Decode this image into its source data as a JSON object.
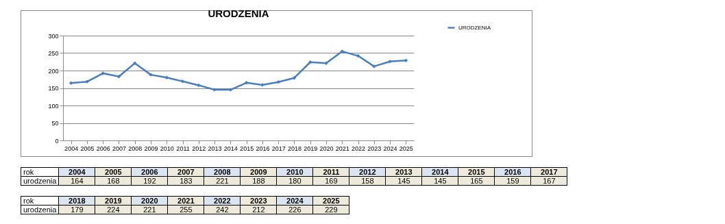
{
  "chart_data": [
    {
      "type": "line",
      "title": "URODZENIA",
      "categories": [
        "2004",
        "2005",
        "2006",
        "2007",
        "2008",
        "2009",
        "2010",
        "2011",
        "2012",
        "2013",
        "2014",
        "2015",
        "2016",
        "2017",
        "2018",
        "2019",
        "2020",
        "2021",
        "2022",
        "2023",
        "2024",
        "2025"
      ],
      "series": [
        {
          "name": "URODZENIA",
          "color": "#4a7ebb",
          "values": [
            164,
            168,
            192,
            183,
            221,
            188,
            180,
            169,
            158,
            145,
            145,
            165,
            159,
            167,
            179,
            224,
            221,
            255,
            242,
            212,
            226,
            229
          ]
        }
      ],
      "ylim": [
        0,
        300
      ],
      "yticks": [
        0,
        50,
        100,
        150,
        200,
        250,
        300
      ],
      "grid": "y",
      "legend": "top right",
      "marker": "diamond",
      "line_style": "solid"
    },
    {
      "type": "heatmap",
      "xlabel": "rok",
      "categories": [
        "2004",
        "2005",
        "2006",
        "2007",
        "2008",
        "2009",
        "2010",
        "2011",
        "2012",
        "2013",
        "2014",
        "2015",
        "2016",
        "2017"
      ],
      "y_categories": [
        "urodzenia"
      ],
      "cells": [
        [
          164,
          168,
          192,
          183,
          221,
          188,
          180,
          169,
          158,
          145,
          145,
          165,
          159,
          167
        ]
      ],
      "data_labels": true
    },
    {
      "type": "heatmap",
      "xlabel": "rok",
      "categories": [
        "2018",
        "2019",
        "2020",
        "2021",
        "2022",
        "2023",
        "2024",
        "2025"
      ],
      "y_categories": [
        "urodzenia"
      ],
      "cells": [
        [
          179,
          224,
          221,
          255,
          242,
          212,
          226,
          229
        ]
      ],
      "data_labels": true
    }
  ]
}
